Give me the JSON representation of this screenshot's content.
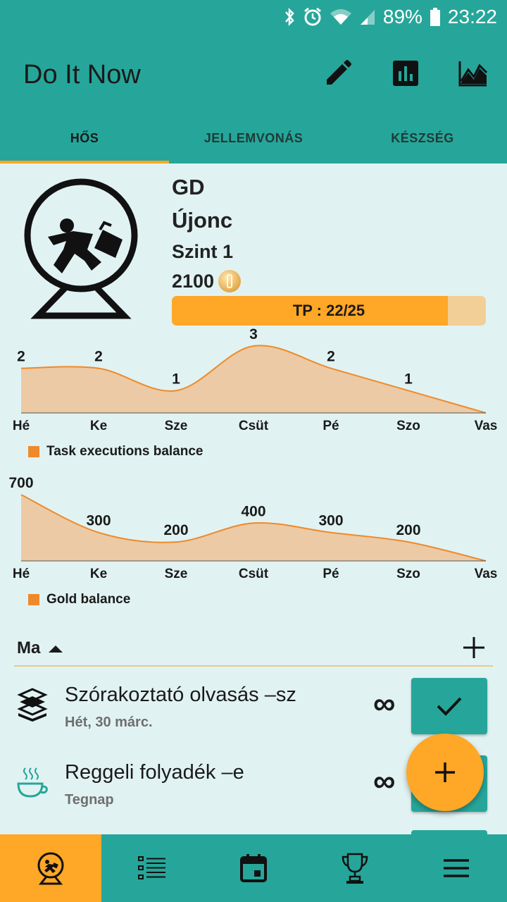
{
  "status_bar": {
    "battery": "89%",
    "time": "23:22",
    "icons": [
      "bluetooth-icon",
      "alarm-icon",
      "wifi-icon",
      "signal-icon",
      "battery-icon"
    ]
  },
  "app_bar": {
    "title": "Do It Now",
    "actions": [
      "edit-icon",
      "bar-chart-icon",
      "line-chart-icon"
    ]
  },
  "tabs": [
    {
      "label": "HŐS",
      "active": true
    },
    {
      "label": "JELLEMVONÁS",
      "active": false
    },
    {
      "label": "KÉSZSÉG",
      "active": false
    }
  ],
  "hero": {
    "name": "GD",
    "rank": "Újonc",
    "level": "Szint 1",
    "gold": "2100",
    "tp_label": "TP : 22/25",
    "tp_fraction": 0.88
  },
  "chart_data": [
    {
      "type": "area",
      "categories": [
        "Hé",
        "Ke",
        "Sze",
        "Csüt",
        "Pé",
        "Szo",
        "Vas"
      ],
      "values": [
        2,
        2,
        1,
        3,
        2,
        1,
        0
      ],
      "value_labels": [
        "2",
        "2",
        "1",
        "3",
        "2",
        "1",
        ""
      ],
      "series_name": "Task executions balance",
      "color": "#ef8a2a",
      "fill": "#eccaa5",
      "ylim": [
        0,
        3
      ]
    },
    {
      "type": "area",
      "categories": [
        "Hé",
        "Ke",
        "Sze",
        "Csüt",
        "Pé",
        "Szo",
        "Vas"
      ],
      "values": [
        700,
        300,
        200,
        400,
        300,
        200,
        0
      ],
      "value_labels": [
        "700",
        "300",
        "200",
        "400",
        "300",
        "200",
        ""
      ],
      "series_name": "Gold balance",
      "color": "#ef8a2a",
      "fill": "#eccaa5",
      "ylim": [
        0,
        700
      ]
    }
  ],
  "tasks_section": {
    "title": "Ma"
  },
  "tasks": [
    {
      "title": "Szórakoztató olvasás –sz",
      "date": "Hét, 30 márc.",
      "repeat": "∞",
      "icon": "books-icon"
    },
    {
      "title": "Reggeli folyadék –e",
      "date": "Tegnap",
      "repeat": "∞",
      "icon": "coffee-cup-icon"
    }
  ],
  "bottom_nav": [
    "hero-icon",
    "task-list-icon",
    "calendar-icon",
    "trophy-icon",
    "menu-icon"
  ]
}
